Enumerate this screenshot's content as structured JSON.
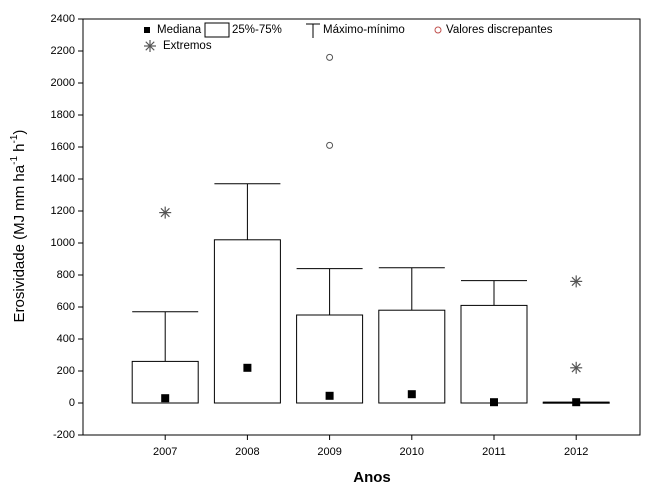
{
  "chart_data": {
    "type": "box",
    "ylabel": [
      "Erosividade (MJ mm ha",
      "-1",
      " h",
      "-1",
      ")"
    ],
    "xlabel": "Anos",
    "categories": [
      "2007",
      "2008",
      "2009",
      "2010",
      "2011",
      "2012"
    ],
    "q1": [
      0,
      0,
      0,
      0,
      0,
      0
    ],
    "q3": [
      260,
      1020,
      550,
      580,
      610,
      5
    ],
    "min": [
      0,
      0,
      0,
      0,
      0,
      0
    ],
    "max": [
      570,
      1370,
      840,
      845,
      765,
      5
    ],
    "median": [
      30,
      220,
      45,
      55,
      5,
      5
    ],
    "outliers": [
      [],
      [],
      [
        2160,
        1610
      ],
      [],
      [],
      []
    ],
    "extremes": [
      [
        1190
      ],
      [],
      [],
      [],
      [],
      [
        760,
        220
      ]
    ],
    "legend": [
      "Mediana",
      "25%-75%",
      "Máximo-mínimo",
      "Valores discrepantes",
      "Extremos"
    ],
    "ylim": [
      -200,
      2400
    ],
    "yticks": [
      -200,
      0,
      200,
      400,
      600,
      800,
      1000,
      1200,
      1400,
      1600,
      1800,
      2000,
      2200,
      2400
    ],
    "color": "#000000"
  }
}
